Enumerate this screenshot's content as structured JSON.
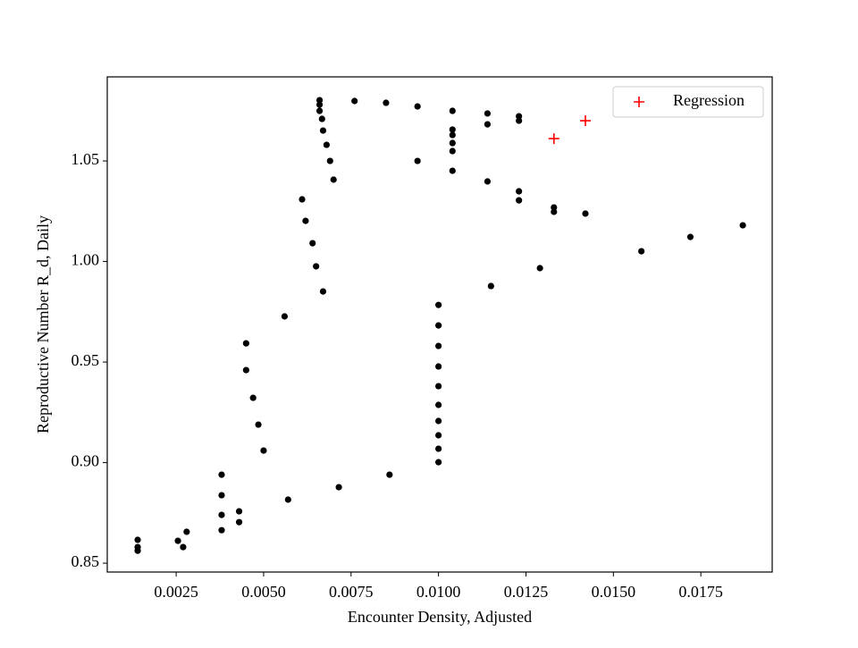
{
  "chart_data": {
    "type": "scatter",
    "xlabel": "Encounter Density, Adjusted",
    "ylabel": "Reproductive Number R_d, Daily",
    "xlim": [
      0.00053,
      0.01954
    ],
    "ylim": [
      0.8456,
      1.0918
    ],
    "xticks": [
      0.0025,
      {
        "value": 0.005,
        "label": "0.0050"
      },
      0.0075,
      {
        "value": 0.01,
        "label": "0.0100"
      },
      0.0125,
      {
        "value": 0.015,
        "label": "0.0150"
      },
      0.0175
    ],
    "yticks": [
      0.85,
      {
        "value": 0.9,
        "label": "0.90"
      },
      0.95,
      {
        "value": 1,
        "label": "1.00"
      },
      1.05
    ],
    "legend": "upper right",
    "series": [
      {
        "color": "#000000",
        "marker": "o",
        "x": [
          0.0014,
          0.0014,
          0.0014,
          0.00255,
          0.0027,
          0.0028,
          0.0038,
          0.0038,
          0.0038,
          0.0038,
          0.0043,
          0.0043,
          0.0045,
          0.0045,
          0.0047,
          0.00485,
          0.005,
          0.0056,
          0.0057,
          0.0061,
          0.0062,
          0.0064,
          0.0065,
          0.0067,
          0.0066,
          0.0066,
          0.0066,
          0.00667,
          0.0067,
          0.0068,
          0.0069,
          0.007,
          0.00715,
          0.0076,
          0.0085,
          0.0086,
          0.0094,
          0.0094,
          0.01,
          0.01,
          0.01,
          0.01,
          0.01,
          0.01,
          0.01,
          0.01,
          0.01,
          0.01,
          0.0104,
          0.0104,
          0.0104,
          0.0104,
          0.0104,
          0.0104,
          0.0114,
          0.0114,
          0.0114,
          0.0115,
          0.0123,
          0.0123,
          0.0123,
          0.0123,
          0.0129,
          0.0133,
          0.0133,
          0.0142,
          0.0158,
          0.0172,
          0.0187
        ],
        "values": [
          0.8616,
          0.858,
          0.8562,
          0.8611,
          0.858,
          0.8656,
          0.894,
          0.8838,
          0.874,
          0.8664,
          0.8758,
          0.8704,
          0.9593,
          0.946,
          0.9322,
          0.9189,
          0.906,
          0.9727,
          0.8816,
          1.0309,
          1.0202,
          1.0091,
          0.9976,
          0.9851,
          1.0802,
          1.078,
          1.0749,
          1.0709,
          1.0651,
          1.058,
          1.05,
          1.0407,
          0.8878,
          1.0798,
          1.0789,
          0.894,
          1.0771,
          1.05,
          0.9784,
          0.9682,
          0.958,
          0.9478,
          0.938,
          0.9287,
          0.9207,
          0.9136,
          0.9069,
          0.9002,
          1.0749,
          1.0656,
          1.0629,
          1.0589,
          1.0549,
          1.0451,
          1.0736,
          1.0682,
          1.0398,
          0.9878,
          1.0722,
          1.07,
          1.0349,
          1.0304,
          0.9967,
          1.0269,
          1.0247,
          1.0238,
          1.0051,
          1.0122,
          1.018
        ]
      },
      {
        "name": "Regression",
        "color": "#ff0000",
        "marker": "+",
        "x": [
          0.0133,
          0.0142
        ],
        "values": [
          1.0611,
          1.07
        ]
      }
    ]
  }
}
